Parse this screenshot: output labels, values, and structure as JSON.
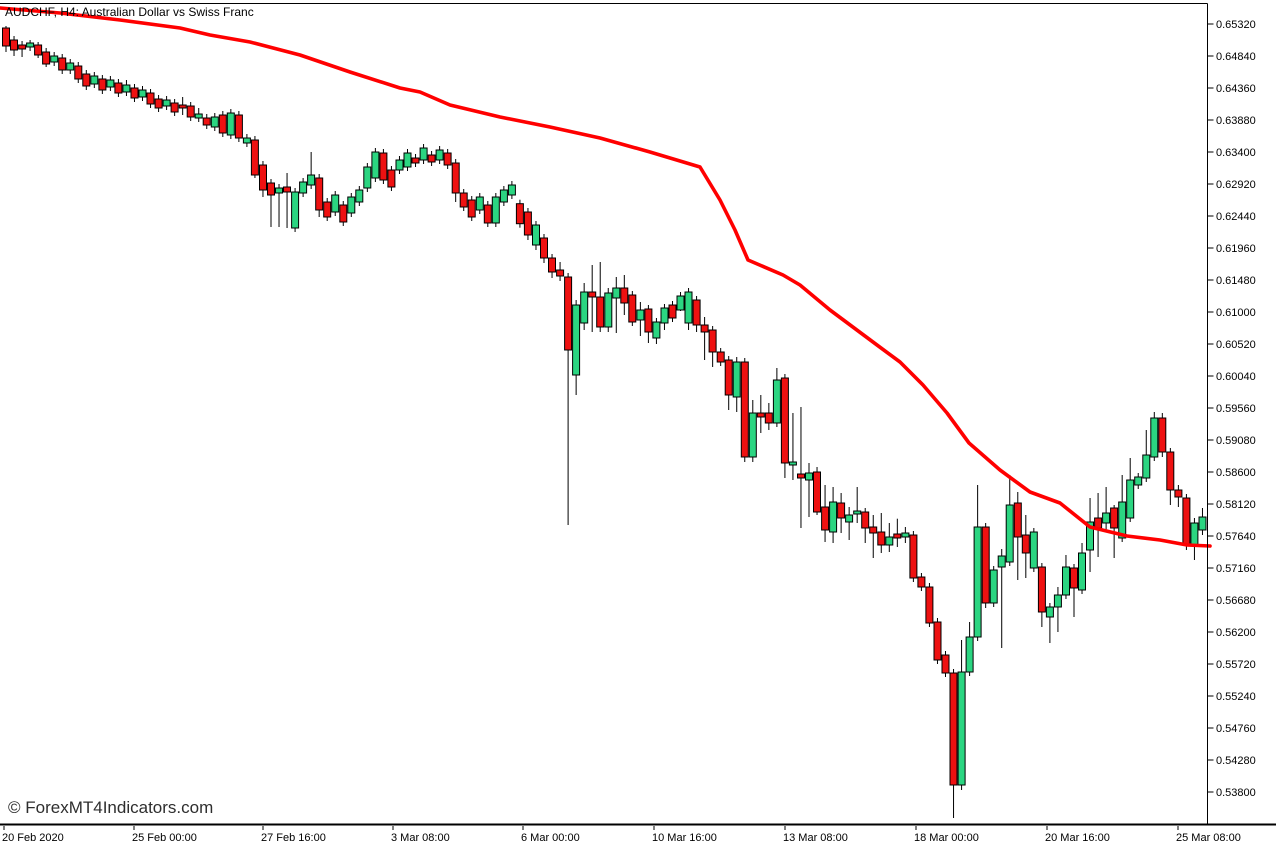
{
  "header": {
    "title": "AUDCHF, H4:  Australian Dollar vs Swiss Franc"
  },
  "watermark": {
    "text": "© ForexMT4Indicators.com"
  },
  "colors": {
    "background": "#FFFFFF",
    "bull_fill": "#2BD581",
    "bear_fill": "#EE1111",
    "candle_outline": "#000000",
    "ma_line": "#FF0000",
    "axis_text": "#000000",
    "border": "#000000"
  },
  "chart_data": {
    "type": "candlestick",
    "symbol": "AUDCHF",
    "timeframe": "H4",
    "description": "Australian Dollar vs Swiss Franc",
    "grid": "off",
    "y_axis": {
      "side": "right",
      "top_value": 0.6532,
      "step": 0.0048,
      "labels": [
        "0.65320",
        "0.64840",
        "0.64360",
        "0.63880",
        "0.63400",
        "0.62920",
        "0.62440",
        "0.61960",
        "0.61480",
        "0.61000",
        "0.60520",
        "0.60040",
        "0.59560",
        "0.59080",
        "0.58600",
        "0.58120",
        "0.57640",
        "0.57160",
        "0.56680",
        "0.56200",
        "0.55720",
        "0.55240",
        "0.54760",
        "0.54280",
        "0.53800"
      ]
    },
    "x_axis": {
      "labels": [
        "20 Feb 2020",
        "25 Feb 00:00",
        "27 Feb 16:00",
        "3 Mar 08:00",
        "6 Mar 00:00",
        "10 Mar 16:00",
        "13 Mar 08:00",
        "18 Mar 00:00",
        "20 Mar 16:00",
        "25 Mar 08:00"
      ],
      "ticks_x": [
        4,
        134,
        263,
        393,
        523,
        654,
        785,
        916,
        1047,
        1178
      ]
    },
    "indicator": {
      "name": "moving-average",
      "color": "#FF0000",
      "points": [
        [
          0,
          0.6556
        ],
        [
          60,
          0.65485
        ],
        [
          120,
          0.6538
        ],
        [
          180,
          0.6526
        ],
        [
          210,
          0.65155
        ],
        [
          250,
          0.6505
        ],
        [
          300,
          0.64855
        ],
        [
          350,
          0.646
        ],
        [
          400,
          0.6436
        ],
        [
          420,
          0.643
        ],
        [
          450,
          0.64105
        ],
        [
          500,
          0.63925
        ],
        [
          550,
          0.63775
        ],
        [
          600,
          0.6361
        ],
        [
          650,
          0.634
        ],
        [
          700,
          0.63175
        ],
        [
          720,
          0.6268
        ],
        [
          735,
          0.6223
        ],
        [
          748,
          0.6178
        ],
        [
          783,
          0.61555
        ],
        [
          800,
          0.61405
        ],
        [
          830,
          0.6103
        ],
        [
          877,
          0.60505
        ],
        [
          900,
          0.6025
        ],
        [
          923,
          0.59905
        ],
        [
          947,
          0.59485
        ],
        [
          969,
          0.59035
        ],
        [
          1000,
          0.5863
        ],
        [
          1030,
          0.583
        ],
        [
          1060,
          0.58135
        ],
        [
          1090,
          0.57775
        ],
        [
          1127,
          0.5764
        ],
        [
          1160,
          0.5758
        ],
        [
          1187,
          0.57505
        ],
        [
          1210,
          0.5749
        ]
      ]
    },
    "candles_format": [
      "open",
      "high",
      "low",
      "close"
    ],
    "candles": [
      [
        0.6526,
        0.6529,
        0.649,
        0.6499
      ],
      [
        0.6508,
        0.6514,
        0.6484,
        0.6493
      ],
      [
        0.65005,
        0.65065,
        0.64825,
        0.64945
      ],
      [
        0.64975,
        0.6508,
        0.64915,
        0.65035
      ],
      [
        0.65005,
        0.6505,
        0.6481,
        0.64855
      ],
      [
        0.649,
        0.6496,
        0.64675,
        0.6472
      ],
      [
        0.6475,
        0.649,
        0.6469,
        0.6484
      ],
      [
        0.6481,
        0.6487,
        0.6457,
        0.6463
      ],
      [
        0.6463,
        0.64795,
        0.6457,
        0.64735
      ],
      [
        0.6469,
        0.6475,
        0.64435,
        0.64495
      ],
      [
        0.6457,
        0.6463,
        0.6433,
        0.6439
      ],
      [
        0.6442,
        0.646,
        0.6436,
        0.6454
      ],
      [
        0.64495,
        0.64555,
        0.6427,
        0.6433
      ],
      [
        0.64375,
        0.6454,
        0.64315,
        0.6448
      ],
      [
        0.64435,
        0.64495,
        0.64225,
        0.64285
      ],
      [
        0.643,
        0.6448,
        0.6424,
        0.64405
      ],
      [
        0.6436,
        0.6442,
        0.6415,
        0.6421
      ],
      [
        0.64225,
        0.6439,
        0.64165,
        0.6433
      ],
      [
        0.64285,
        0.64345,
        0.6406,
        0.6412
      ],
      [
        0.64195,
        0.64255,
        0.64,
        0.6406
      ],
      [
        0.6409,
        0.6424,
        0.6403,
        0.6418
      ],
      [
        0.64135,
        0.64195,
        0.6394,
        0.64
      ],
      [
        0.64105,
        0.64225,
        0.63955,
        0.6406
      ],
      [
        0.6409,
        0.6415,
        0.63865,
        0.63925
      ],
      [
        0.6391,
        0.6406,
        0.6385,
        0.6397
      ],
      [
        0.6391,
        0.6397,
        0.63745,
        0.63805
      ],
      [
        0.63775,
        0.63985,
        0.63715,
        0.63925
      ],
      [
        0.63955,
        0.64015,
        0.63625,
        0.63685
      ],
      [
        0.63655,
        0.64045,
        0.63595,
        0.63985
      ],
      [
        0.63955,
        0.64015,
        0.6355,
        0.6361
      ],
      [
        0.63535,
        0.6367,
        0.63475,
        0.6361
      ],
      [
        0.6358,
        0.6364,
        0.6301,
        0.63055
      ],
      [
        0.63205,
        0.63265,
        0.62725,
        0.6283
      ],
      [
        0.62935,
        0.62995,
        0.62275,
        0.62755
      ],
      [
        0.62785,
        0.6292,
        0.62275,
        0.6286
      ],
      [
        0.62875,
        0.63085,
        0.6226,
        0.628
      ],
      [
        0.6226,
        0.6286,
        0.622,
        0.628
      ],
      [
        0.62785,
        0.6301,
        0.62725,
        0.6295
      ],
      [
        0.62905,
        0.634,
        0.62845,
        0.63055
      ],
      [
        0.6301,
        0.6307,
        0.62425,
        0.6253
      ],
      [
        0.6265,
        0.6271,
        0.62365,
        0.62425
      ],
      [
        0.625,
        0.62815,
        0.6244,
        0.62755
      ],
      [
        0.62605,
        0.62665,
        0.6229,
        0.6235
      ],
      [
        0.62485,
        0.62785,
        0.62425,
        0.62725
      ],
      [
        0.6265,
        0.6289,
        0.6259,
        0.6283
      ],
      [
        0.6286,
        0.63235,
        0.628,
        0.63175
      ],
      [
        0.6301,
        0.6346,
        0.6295,
        0.634
      ],
      [
        0.63385,
        0.63445,
        0.6292,
        0.6298
      ],
      [
        0.6313,
        0.6319,
        0.62815,
        0.62875
      ],
      [
        0.6313,
        0.6334,
        0.6307,
        0.6328
      ],
      [
        0.63175,
        0.63445,
        0.63115,
        0.63385
      ],
      [
        0.6331,
        0.6337,
        0.63175,
        0.63235
      ],
      [
        0.6328,
        0.6352,
        0.6322,
        0.6346
      ],
      [
        0.63355,
        0.63415,
        0.6319,
        0.6325
      ],
      [
        0.6328,
        0.6349,
        0.6322,
        0.6343
      ],
      [
        0.63385,
        0.63445,
        0.63145,
        0.63205
      ],
      [
        0.63235,
        0.63295,
        0.6265,
        0.62785
      ],
      [
        0.62785,
        0.62845,
        0.62515,
        0.62575
      ],
      [
        0.6268,
        0.6274,
        0.62365,
        0.62425
      ],
      [
        0.6253,
        0.62785,
        0.6247,
        0.62725
      ],
      [
        0.62605,
        0.62665,
        0.62275,
        0.62335
      ],
      [
        0.62335,
        0.62785,
        0.62275,
        0.62725
      ],
      [
        0.6265,
        0.6289,
        0.6259,
        0.6283
      ],
      [
        0.62755,
        0.62965,
        0.62695,
        0.62905
      ],
      [
        0.62625,
        0.62685,
        0.62265,
        0.62325
      ],
      [
        0.625,
        0.6256,
        0.6208,
        0.62155
      ],
      [
        0.62005,
        0.62365,
        0.6193,
        0.62305
      ],
      [
        0.6211,
        0.6217,
        0.61735,
        0.6181
      ],
      [
        0.6181,
        0.6187,
        0.6151,
        0.616
      ],
      [
        0.6163,
        0.6175,
        0.61465,
        0.6154
      ],
      [
        0.61525,
        0.61585,
        0.57805,
        0.6043
      ],
      [
        0.60055,
        0.6118,
        0.59755,
        0.61105
      ],
      [
        0.60835,
        0.61435,
        0.6073,
        0.613
      ],
      [
        0.613,
        0.61705,
        0.607,
        0.61225
      ],
      [
        0.61225,
        0.6175,
        0.607,
        0.60775
      ],
      [
        0.60775,
        0.6136,
        0.607,
        0.61285
      ],
      [
        0.6121,
        0.61525,
        0.60685,
        0.6136
      ],
      [
        0.6136,
        0.61555,
        0.60955,
        0.61135
      ],
      [
        0.61255,
        0.61315,
        0.6079,
        0.6085
      ],
      [
        0.6088,
        0.6115,
        0.6064,
        0.6103
      ],
      [
        0.61045,
        0.61105,
        0.60535,
        0.607
      ],
      [
        0.6061,
        0.6091,
        0.6052,
        0.6085
      ],
      [
        0.60835,
        0.6112,
        0.6073,
        0.6106
      ],
      [
        0.61105,
        0.61165,
        0.6085,
        0.6091
      ],
      [
        0.6103,
        0.613,
        0.61015,
        0.6124
      ],
      [
        0.60835,
        0.6136,
        0.6073,
        0.613
      ],
      [
        0.6118,
        0.6124,
        0.607,
        0.60805
      ],
      [
        0.60805,
        0.60925,
        0.6028,
        0.607
      ],
      [
        0.6073,
        0.6079,
        0.60175,
        0.604
      ],
      [
        0.604,
        0.6046,
        0.6019,
        0.6025
      ],
      [
        0.6028,
        0.6034,
        0.5953,
        0.59755
      ],
      [
        0.59725,
        0.60325,
        0.595,
        0.6025
      ],
      [
        0.6025,
        0.6031,
        0.5875,
        0.58825
      ],
      [
        0.58825,
        0.5968,
        0.5875,
        0.59485
      ],
      [
        0.59485,
        0.59755,
        0.59185,
        0.59425
      ],
      [
        0.59485,
        0.59635,
        0.5923,
        0.59335
      ],
      [
        0.59335,
        0.6016,
        0.59275,
        0.5998
      ],
      [
        0.6001,
        0.6007,
        0.5851,
        0.58735
      ],
      [
        0.58705,
        0.59485,
        0.5848,
        0.5875
      ],
      [
        0.5857,
        0.59575,
        0.5776,
        0.5851
      ],
      [
        0.5848,
        0.58735,
        0.57925,
        0.58585
      ],
      [
        0.586,
        0.58675,
        0.57955,
        0.58
      ],
      [
        0.58075,
        0.58405,
        0.5755,
        0.5773
      ],
      [
        0.577,
        0.58375,
        0.57535,
        0.5815
      ],
      [
        0.58135,
        0.58285,
        0.57685,
        0.5791
      ],
      [
        0.5785,
        0.58075,
        0.5758,
        0.57955
      ],
      [
        0.5797,
        0.58375,
        0.57835,
        0.58015
      ],
      [
        0.58,
        0.5806,
        0.57535,
        0.5776
      ],
      [
        0.57775,
        0.57955,
        0.5731,
        0.57685
      ],
      [
        0.577,
        0.57985,
        0.57385,
        0.57505
      ],
      [
        0.57505,
        0.57835,
        0.574,
        0.57625
      ],
      [
        0.5767,
        0.579,
        0.57475,
        0.5761
      ],
      [
        0.57625,
        0.57775,
        0.57535,
        0.57685
      ],
      [
        0.57655,
        0.57715,
        0.5695,
        0.5701
      ],
      [
        0.57025,
        0.57085,
        0.56815,
        0.56875
      ],
      [
        0.56875,
        0.56935,
        0.56275,
        0.56335
      ],
      [
        0.5635,
        0.5641,
        0.5572,
        0.5578
      ],
      [
        0.55855,
        0.55915,
        0.55525,
        0.55585
      ],
      [
        0.55585,
        0.55645,
        0.5341,
        0.53905
      ],
      [
        0.53905,
        0.5608,
        0.5383,
        0.556
      ],
      [
        0.556,
        0.5635,
        0.5554,
        0.56125
      ],
      [
        0.56125,
        0.58405,
        0.56065,
        0.57775
      ],
      [
        0.57775,
        0.57835,
        0.5656,
        0.56635
      ],
      [
        0.56635,
        0.5719,
        0.56575,
        0.5713
      ],
      [
        0.57175,
        0.57445,
        0.5596,
        0.5734
      ],
      [
        0.5725,
        0.58555,
        0.5719,
        0.58105
      ],
      [
        0.58135,
        0.583,
        0.5698,
        0.57625
      ],
      [
        0.57655,
        0.57955,
        0.5701,
        0.57385
      ],
      [
        0.5716,
        0.5776,
        0.571,
        0.577
      ],
      [
        0.57175,
        0.57235,
        0.56275,
        0.565
      ],
      [
        0.56425,
        0.56635,
        0.56035,
        0.56575
      ],
      [
        0.56575,
        0.56875,
        0.562,
        0.56755
      ],
      [
        0.56755,
        0.57355,
        0.56695,
        0.57175
      ],
      [
        0.5716,
        0.5722,
        0.56425,
        0.5686
      ],
      [
        0.5683,
        0.57535,
        0.5677,
        0.57385
      ],
      [
        0.5743,
        0.5821,
        0.571,
        0.5785
      ],
      [
        0.5791,
        0.58285,
        0.57325,
        0.5776
      ],
      [
        0.57835,
        0.58375,
        0.5773,
        0.57985
      ],
      [
        0.5806,
        0.58105,
        0.5731,
        0.5776
      ],
      [
        0.5761,
        0.58555,
        0.5755,
        0.5815
      ],
      [
        0.5791,
        0.5881,
        0.5785,
        0.5848
      ],
      [
        0.58405,
        0.58585,
        0.58345,
        0.58525
      ],
      [
        0.5851,
        0.5923,
        0.5845,
        0.58855
      ],
      [
        0.58825,
        0.595,
        0.58765,
        0.5941
      ],
      [
        0.5941,
        0.59485,
        0.58825,
        0.589
      ],
      [
        0.589,
        0.5896,
        0.58105,
        0.5833
      ],
      [
        0.5833,
        0.58405,
        0.58075,
        0.58225
      ],
      [
        0.5821,
        0.5827,
        0.5743,
        0.57505
      ],
      [
        0.57505,
        0.5791,
        0.5728,
        0.57835
      ],
      [
        0.5773,
        0.5806,
        0.57655,
        0.57925
      ]
    ]
  }
}
